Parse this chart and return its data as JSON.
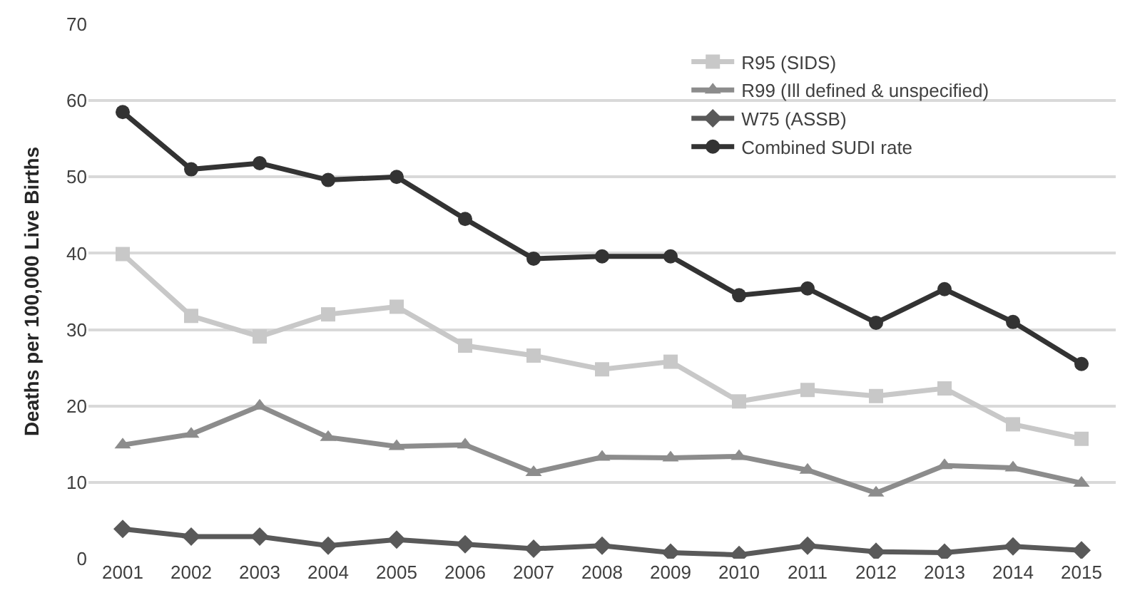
{
  "chart_data": {
    "type": "line",
    "ylabel": "Deaths per 100,000 Live Births",
    "categories": [
      "2001",
      "2002",
      "2003",
      "2004",
      "2005",
      "2006",
      "2007",
      "2008",
      "2009",
      "2010",
      "2011",
      "2012",
      "2013",
      "2014",
      "2015"
    ],
    "series": [
      {
        "name": "R95 (SIDS)",
        "color": "#c8c8c8",
        "marker": "square",
        "values": [
          39.9,
          31.8,
          29.1,
          32,
          33,
          27.9,
          26.6,
          24.8,
          25.8,
          20.6,
          22.1,
          21.3,
          22.3,
          17.6,
          15.7
        ]
      },
      {
        "name": "R99 (Ill defined & unspecified)",
        "color": "#8c8c8c",
        "marker": "triangle",
        "values": [
          14.9,
          16.3,
          20,
          15.9,
          14.7,
          14.9,
          11.3,
          13.3,
          13.2,
          13.4,
          11.6,
          8.6,
          12.2,
          11.9,
          9.9
        ]
      },
      {
        "name": "W75 (ASSB)",
        "color": "#595959",
        "marker": "diamond",
        "values": [
          3.9,
          2.9,
          2.9,
          1.7,
          2.5,
          1.9,
          1.3,
          1.7,
          0.8,
          0.5,
          1.7,
          0.9,
          0.8,
          1.6,
          1.1
        ]
      },
      {
        "name": "Combined SUDI rate",
        "color": "#333333",
        "marker": "circle",
        "values": [
          58.5,
          51,
          51.8,
          49.6,
          50,
          44.5,
          39.3,
          39.6,
          39.6,
          34.5,
          35.4,
          30.9,
          35.3,
          31,
          25.5
        ]
      }
    ],
    "ylim": [
      0,
      70
    ],
    "yticks": [
      0,
      10,
      20,
      30,
      40,
      50,
      60,
      70
    ],
    "grid": "y",
    "legend": "top right",
    "line_style": "solid"
  }
}
